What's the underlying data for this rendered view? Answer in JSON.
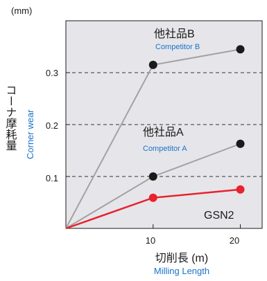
{
  "chart_data": {
    "type": "line",
    "unit_label": "(mm)",
    "ylabel_jp": "コーナ摩耗量",
    "ylabel_en": "Corner wear",
    "xlabel_jp": "切削長 (m)",
    "xlabel_en": "Milling Length",
    "x_ticks": [
      "10",
      "20"
    ],
    "y_ticks": [
      "0.1",
      "0.2",
      "0.3"
    ],
    "xlim": [
      0,
      22.5
    ],
    "ylim": [
      0,
      0.4
    ],
    "gridlines_y": [
      0.1,
      0.2,
      0.3
    ],
    "plot_background": "#e6e6ea",
    "series": [
      {
        "name_jp": "他社品B",
        "name_en": "Competitor B",
        "color": "#a2a2a2",
        "x": [
          0,
          10,
          20
        ],
        "y": [
          0,
          0.315,
          0.345
        ]
      },
      {
        "name_jp": "他社品A",
        "name_en": "Competitor A",
        "color": "#a2a2a2",
        "x": [
          0,
          10,
          20
        ],
        "y": [
          0,
          0.1,
          0.163
        ]
      },
      {
        "name_jp": "GSN2",
        "name_en": "",
        "color": "#e8222e",
        "x": [
          0,
          10,
          20
        ],
        "y": [
          0,
          0.059,
          0.075
        ]
      }
    ],
    "colors": {
      "marker_black": "#1a1a1a",
      "english_label": "#1a73c8",
      "text": "#1a1a1a"
    }
  }
}
